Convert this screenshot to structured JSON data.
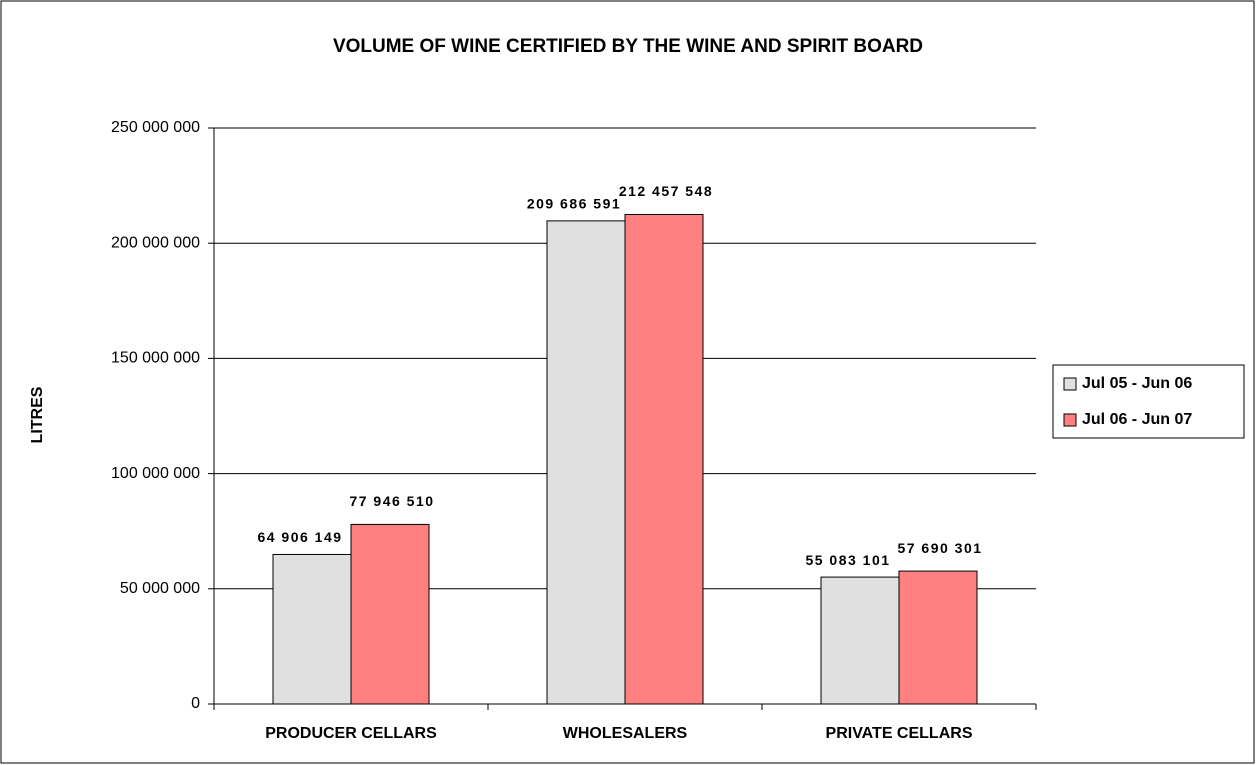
{
  "chart_data": {
    "type": "bar",
    "title": "VOLUME OF WINE CERTIFIED BY THE WINE AND SPIRIT BOARD",
    "y_label": "LITRES",
    "categories": [
      "PRODUCER CELLARS",
      "WHOLESALERS",
      "PRIVATE CELLARS"
    ],
    "series": [
      {
        "name": "Jul 05 - Jun 06",
        "color": "#e0e0e0",
        "values": [
          64906149,
          209686591,
          55083101
        ],
        "value_labels": [
          "64 906 149",
          "209 686 591",
          "55 083 101"
        ]
      },
      {
        "name": "Jul 06 - Jun 07",
        "color": "#ff8080",
        "values": [
          77946510,
          212457548,
          57690301
        ],
        "value_labels": [
          "77 946 510",
          "212 457 548",
          "57 690 301"
        ]
      }
    ],
    "ylim": [
      0,
      250000000
    ],
    "yticks": [
      0,
      {
        "value": 50000000,
        "label": "50 000 000"
      },
      {
        "value": 100000000,
        "label": "100 000 000"
      },
      {
        "value": 150000000,
        "label": "150 000 000"
      },
      {
        "value": 200000000,
        "label": "200 000 000"
      },
      {
        "value": 250000000,
        "label": "250 000 000"
      }
    ],
    "grid": true,
    "legend": "right"
  }
}
